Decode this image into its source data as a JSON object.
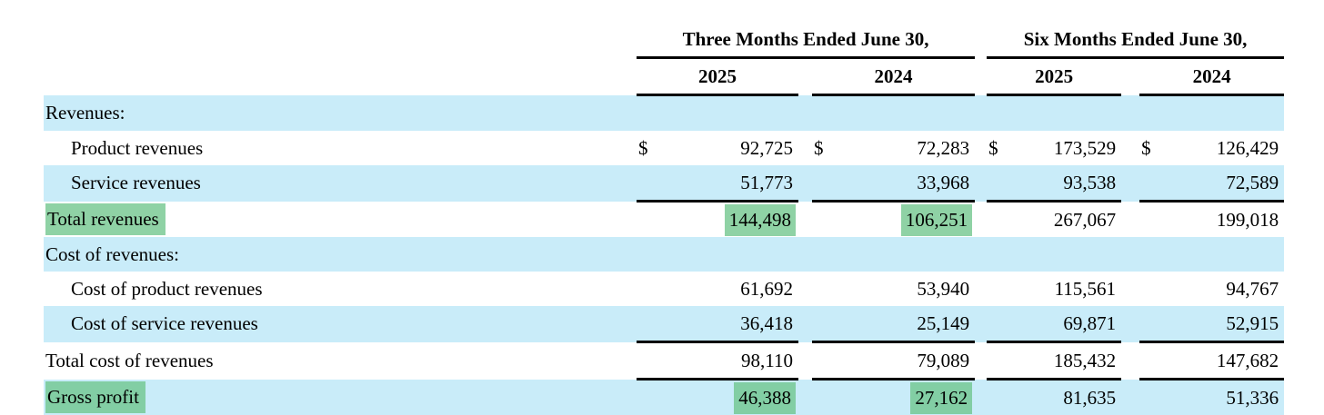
{
  "table": {
    "dollar_sign": "$",
    "colors": {
      "row_blue": "#C9ECF9",
      "highlight_green": "rgba(108,196,137,0.76)"
    },
    "col_groups": [
      {
        "label": "Three Months Ended June 30,",
        "years": [
          "2025",
          "2024"
        ]
      },
      {
        "label": "Six Months Ended June 30,",
        "years": [
          "2025",
          "2024"
        ]
      }
    ],
    "rows": [
      {
        "label": "Revenues:",
        "indent": 0,
        "shade": "blue",
        "dollar": false,
        "values": [
          "",
          "",
          "",
          ""
        ],
        "label_highlight": false,
        "value_highlights": [
          false,
          false,
          false,
          false
        ],
        "rule_below": false
      },
      {
        "label": "Product revenues",
        "indent": 1,
        "shade": "white",
        "dollar": true,
        "values": [
          "92,725",
          "72,283",
          "173,529",
          "126,429"
        ],
        "label_highlight": false,
        "value_highlights": [
          false,
          false,
          false,
          false
        ],
        "rule_below": false
      },
      {
        "label": "Service revenues",
        "indent": 1,
        "shade": "blue",
        "dollar": false,
        "values": [
          "51,773",
          "33,968",
          "93,538",
          "72,589"
        ],
        "label_highlight": false,
        "value_highlights": [
          false,
          false,
          false,
          false
        ],
        "rule_below": true
      },
      {
        "label": "Total revenues",
        "indent": 0,
        "shade": "white",
        "dollar": false,
        "values": [
          "144,498",
          "106,251",
          "267,067",
          "199,018"
        ],
        "label_highlight": true,
        "value_highlights": [
          true,
          true,
          false,
          false
        ],
        "rule_below": false
      },
      {
        "label": "Cost of revenues:",
        "indent": 0,
        "shade": "blue",
        "dollar": false,
        "values": [
          "",
          "",
          "",
          ""
        ],
        "label_highlight": false,
        "value_highlights": [
          false,
          false,
          false,
          false
        ],
        "rule_below": false
      },
      {
        "label": "Cost of product revenues",
        "indent": 1,
        "shade": "white",
        "dollar": false,
        "values": [
          "61,692",
          "53,940",
          "115,561",
          "94,767"
        ],
        "label_highlight": false,
        "value_highlights": [
          false,
          false,
          false,
          false
        ],
        "rule_below": false
      },
      {
        "label": "Cost of service revenues",
        "indent": 1,
        "shade": "blue",
        "dollar": false,
        "values": [
          "36,418",
          "25,149",
          "69,871",
          "52,915"
        ],
        "label_highlight": false,
        "value_highlights": [
          false,
          false,
          false,
          false
        ],
        "rule_below": true
      },
      {
        "label": "Total cost of revenues",
        "indent": 0,
        "shade": "white",
        "dollar": false,
        "values": [
          "98,110",
          "79,089",
          "185,432",
          "147,682"
        ],
        "label_highlight": false,
        "value_highlights": [
          false,
          false,
          false,
          false
        ],
        "rule_below": true
      },
      {
        "label": "Gross profit",
        "indent": 0,
        "shade": "blue",
        "dollar": false,
        "values": [
          "46,388",
          "27,162",
          "81,635",
          "51,336"
        ],
        "label_highlight": true,
        "value_highlights": [
          true,
          true,
          false,
          false
        ],
        "rule_below": false
      }
    ]
  }
}
